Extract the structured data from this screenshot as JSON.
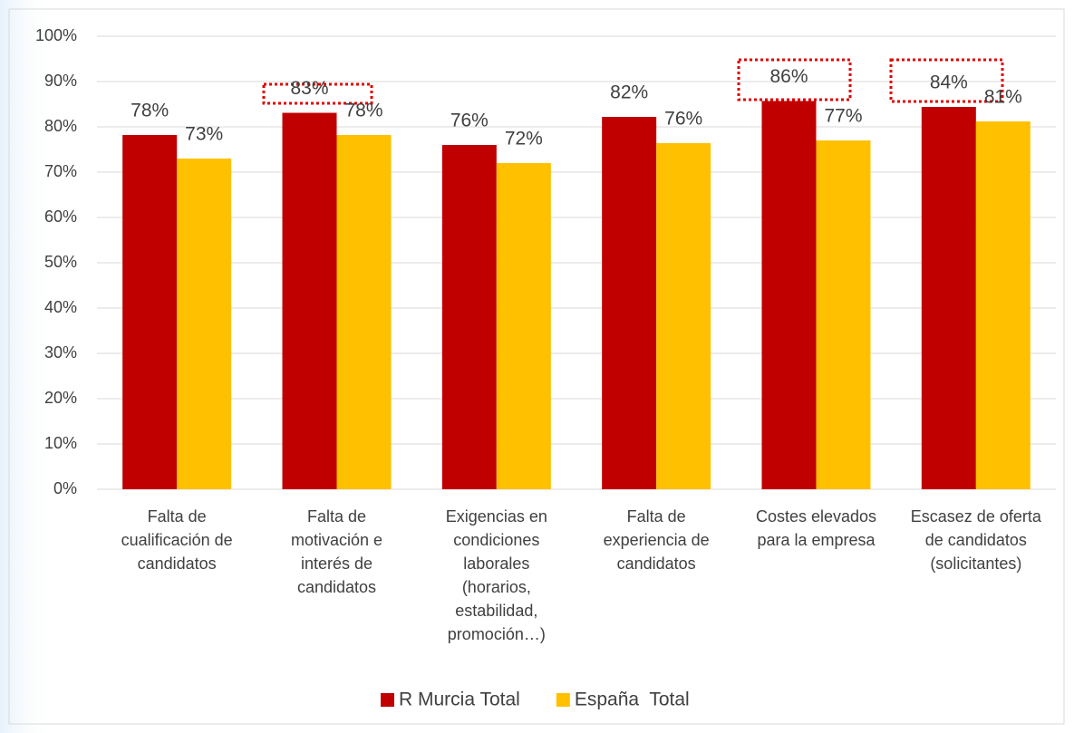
{
  "chart_data": {
    "type": "bar",
    "categories": [
      "Falta de\ncualificación de\ncandidatos",
      "Falta de\nmotivación e\ninterés de\ncandidatos",
      "Exigencias en\ncondiciones\nlaborales\n(horarios,\nestabilidad,\npromoción…)",
      "Falta de\nexperiencia de\ncandidatos",
      "Costes elevados\npara la empresa",
      "Escasez de oferta\nde candidatos\n(solicitantes)"
    ],
    "series": [
      {
        "name": "R Murcia Total",
        "color": "#c00000",
        "values": [
          78.2,
          83.1,
          76,
          82.2,
          85.7,
          84.4
        ],
        "value_labels": [
          "78%",
          "83%",
          "76%",
          "82%",
          "86%",
          "84%"
        ]
      },
      {
        "name": "España  Total",
        "color": "#ffc000",
        "values": [
          73,
          78.2,
          72,
          76.4,
          77,
          81.2
        ],
        "value_labels": [
          "73%",
          "78%",
          "72%",
          "76%",
          "77%",
          "81%"
        ]
      }
    ],
    "ylim": [
      0,
      100
    ],
    "yticks": [
      {
        "value": 0,
        "label": "0%"
      },
      {
        "value": 10,
        "label": "10%"
      },
      {
        "value": 20,
        "label": "20%"
      },
      {
        "value": 30,
        "label": "30%"
      },
      {
        "value": 40,
        "label": "40%"
      },
      {
        "value": 50,
        "label": "50%"
      },
      {
        "value": 60,
        "label": "60%"
      },
      {
        "value": 70,
        "label": "70%"
      },
      {
        "value": 80,
        "label": "80%"
      },
      {
        "value": 90,
        "label": "90%"
      },
      {
        "value": 100,
        "label": "100%"
      }
    ],
    "grid": true,
    "legend": "bottom"
  }
}
